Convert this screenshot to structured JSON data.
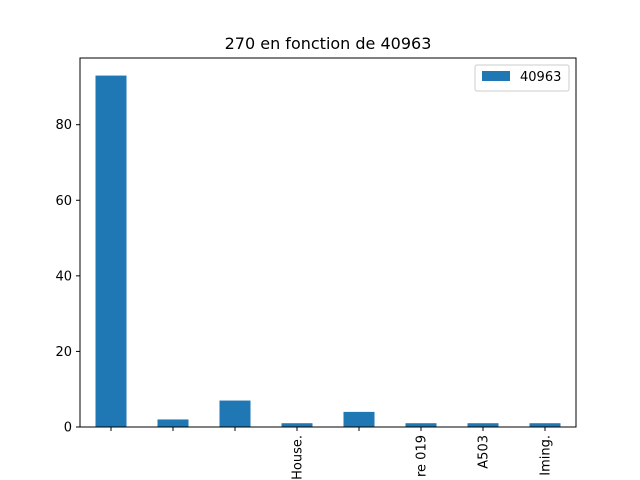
{
  "chart_data": {
    "type": "bar",
    "title": "270 en fonction de 40963",
    "xlabel": "",
    "ylabel": "",
    "categories": [
      "",
      "",
      "",
      "House.",
      "",
      "re 019",
      "A503",
      "Iming."
    ],
    "series": [
      {
        "name": "40963",
        "values": [
          93,
          2,
          7,
          1,
          4,
          1,
          1,
          1
        ],
        "color": "#1f77b4"
      }
    ],
    "ylim": [
      0,
      97.65
    ],
    "yticks": [
      0,
      20,
      40,
      60,
      80
    ],
    "legend": {
      "placement": "top-right"
    },
    "grid": false
  }
}
